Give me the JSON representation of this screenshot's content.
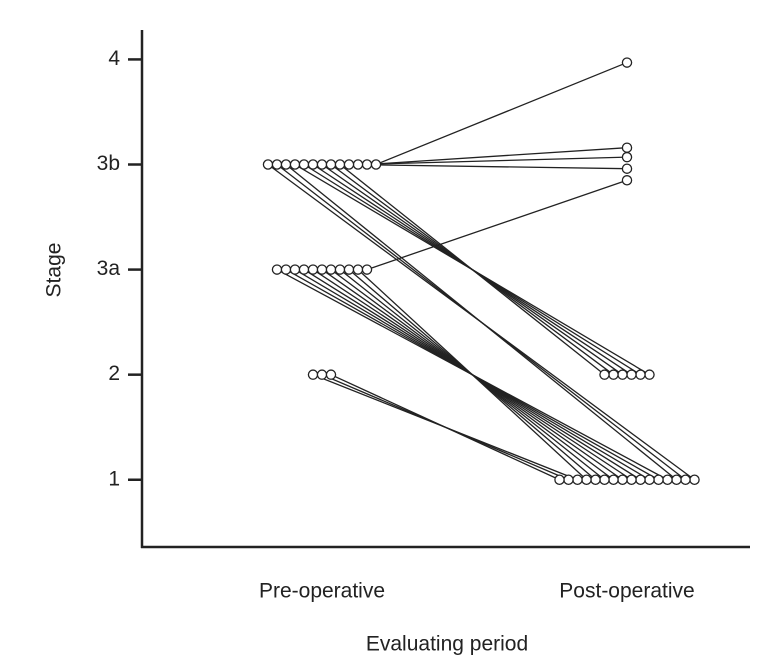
{
  "chart_data": {
    "type": "slope",
    "x_label": "Evaluating period",
    "y_label": "Stage",
    "categories": [
      "Pre-operative",
      "Post-operative"
    ],
    "ylim": [
      0.36,
      5.28
    ],
    "yticks": [
      1,
      2,
      {
        "value": 3,
        "label": "3a"
      },
      {
        "value": 4,
        "label": "3b"
      },
      {
        "value": 5,
        "label": "4"
      }
    ],
    "color": "#222",
    "series": [
      {
        "values": [
          4,
          1
        ]
      },
      {
        "values": [
          4,
          1
        ]
      },
      {
        "values": [
          4,
          1
        ]
      },
      {
        "values": [
          4,
          2
        ]
      },
      {
        "values": [
          4,
          2
        ]
      },
      {
        "values": [
          4,
          2
        ]
      },
      {
        "values": [
          4,
          2
        ]
      },
      {
        "values": [
          4,
          2
        ]
      },
      {
        "values": [
          4,
          2
        ]
      },
      {
        "values": [
          4,
          4.16
        ]
      },
      {
        "values": [
          4,
          4.07
        ]
      },
      {
        "values": [
          4,
          3.96
        ]
      },
      {
        "values": [
          4,
          4.97
        ]
      },
      {
        "values": [
          3,
          1
        ]
      },
      {
        "values": [
          3,
          1
        ]
      },
      {
        "values": [
          3,
          1
        ]
      },
      {
        "values": [
          3,
          1
        ]
      },
      {
        "values": [
          3,
          1
        ]
      },
      {
        "values": [
          3,
          1
        ]
      },
      {
        "values": [
          3,
          1
        ]
      },
      {
        "values": [
          3,
          1
        ]
      },
      {
        "values": [
          3,
          1
        ]
      },
      {
        "values": [
          3,
          1
        ]
      },
      {
        "values": [
          3,
          3.85
        ]
      },
      {
        "values": [
          2,
          1
        ]
      },
      {
        "values": [
          2,
          1
        ]
      },
      {
        "values": [
          2,
          1
        ]
      }
    ]
  }
}
